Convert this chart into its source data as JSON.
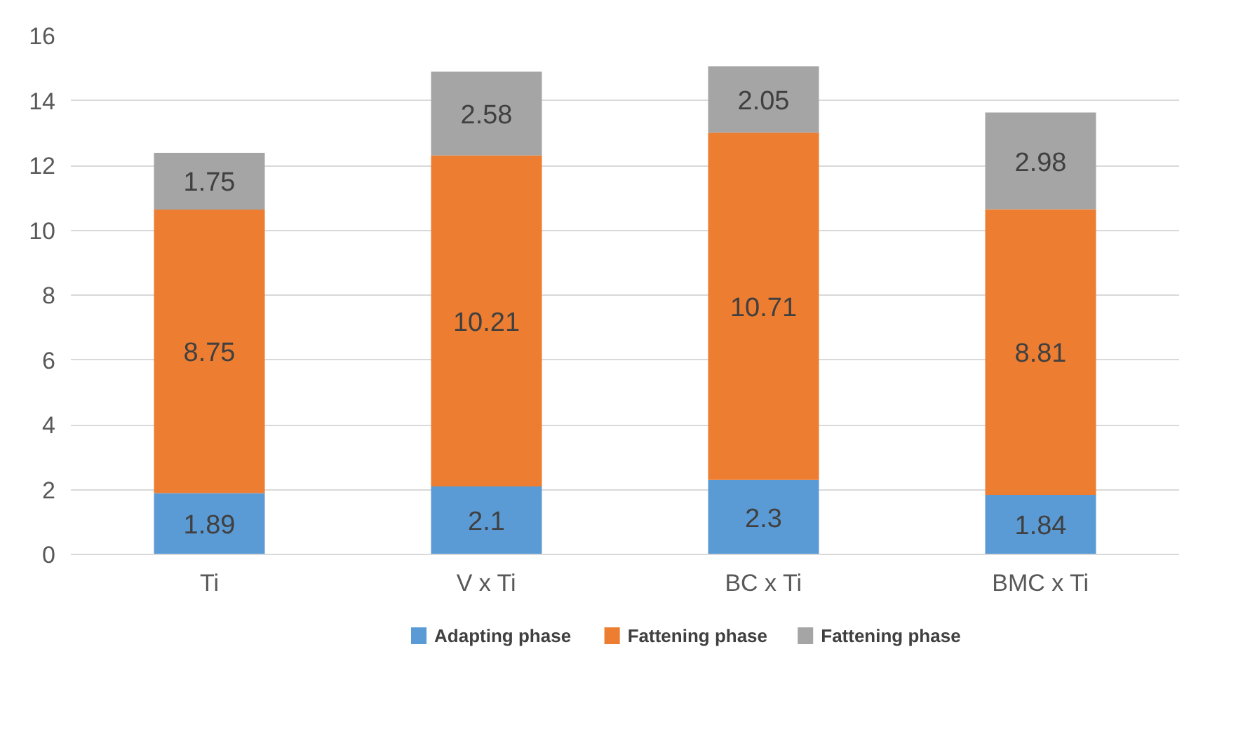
{
  "chart_data": {
    "type": "bar",
    "stacked": true,
    "categories": [
      "Ti",
      "V x Ti",
      "BC x Ti",
      "BMC x Ti"
    ],
    "series": [
      {
        "name": "Adapting phase",
        "color": "#5b9bd5",
        "values": [
          1.89,
          2.1,
          2.3,
          1.84
        ]
      },
      {
        "name": "Fattening phase",
        "color": "#ed7d31",
        "values": [
          8.75,
          10.21,
          10.71,
          8.81
        ]
      },
      {
        "name": "Fattening phase",
        "color": "#a5a5a5",
        "values": [
          1.75,
          2.58,
          2.05,
          2.98
        ]
      }
    ],
    "ylim": [
      0,
      16
    ],
    "yticks": [
      0,
      2,
      4,
      6,
      8,
      10,
      12,
      14,
      16
    ],
    "grid": "y",
    "legend": "bottom",
    "data_labels": true
  }
}
